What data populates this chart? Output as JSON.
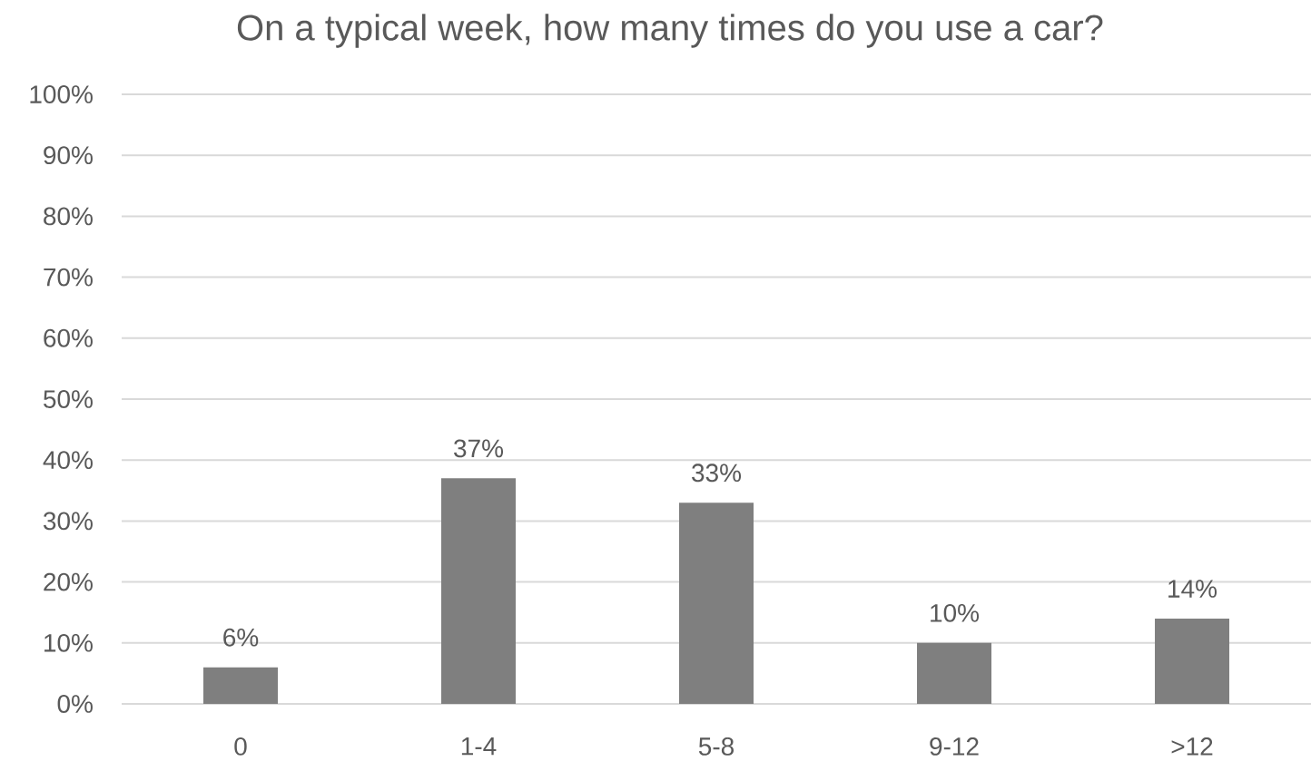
{
  "chart_data": {
    "type": "bar",
    "title": "On a typical week, how many times do you use a car?",
    "categories": [
      "0",
      "1-4",
      "5-8",
      "9-12",
      ">12"
    ],
    "values": [
      6,
      37,
      33,
      10,
      14
    ],
    "value_labels": [
      "6%",
      "37%",
      "33%",
      "10%",
      "14%"
    ],
    "color": "#7f7f7f",
    "ylim": [
      0,
      100
    ],
    "yticks": [
      {
        "value": 0,
        "label": "0%"
      },
      {
        "value": 10,
        "label": "10%"
      },
      {
        "value": 20,
        "label": "20%"
      },
      {
        "value": 30,
        "label": "30%"
      },
      {
        "value": 40,
        "label": "40%"
      },
      {
        "value": 50,
        "label": "50%"
      },
      {
        "value": 60,
        "label": "60%"
      },
      {
        "value": 70,
        "label": "70%"
      },
      {
        "value": 80,
        "label": "80%"
      },
      {
        "value": 90,
        "label": "90%"
      },
      {
        "value": 100,
        "label": "100%"
      }
    ],
    "grid": "y"
  }
}
